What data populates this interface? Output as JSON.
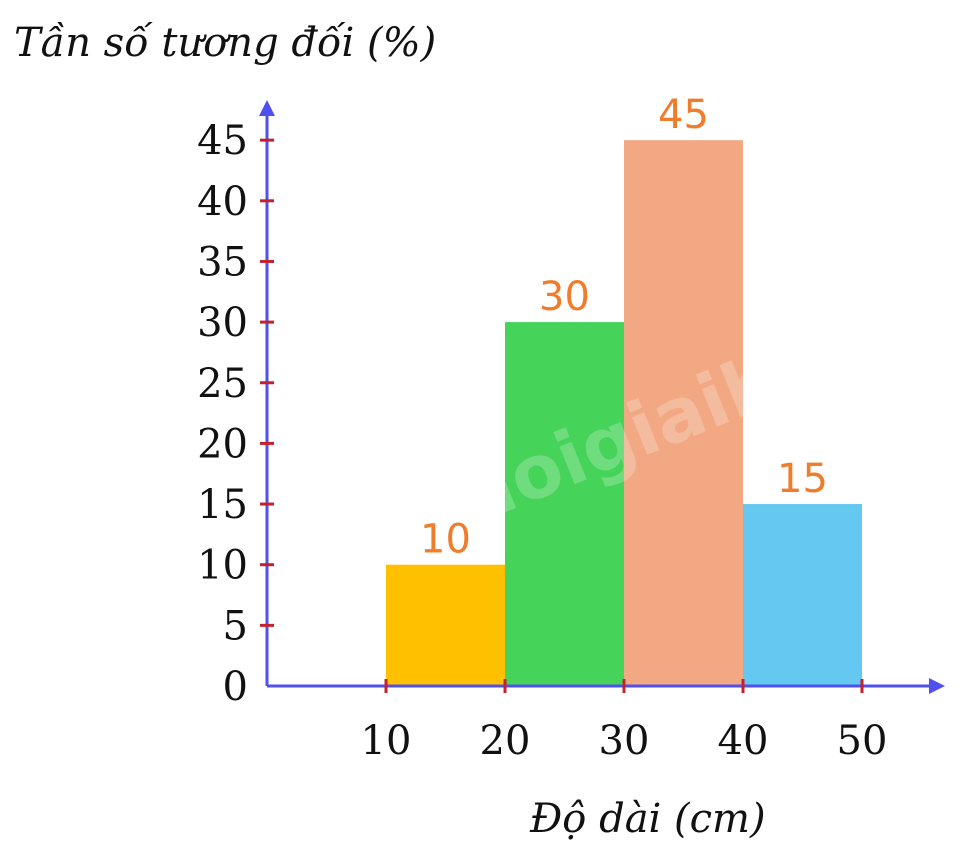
{
  "chart_data": {
    "type": "bar",
    "ylabel": "Tần số tương đối (%)",
    "xlabel": "Độ dài (cm)",
    "x_ticks": [
      10,
      20,
      30,
      40,
      50
    ],
    "y_ticks": [
      0,
      5,
      10,
      15,
      20,
      25,
      30,
      35,
      40,
      45
    ],
    "bins": [
      [
        10,
        20
      ],
      [
        20,
        30
      ],
      [
        30,
        40
      ],
      [
        40,
        50
      ]
    ],
    "values": [
      10,
      30,
      45,
      15
    ],
    "data_labels": [
      "10",
      "30",
      "45",
      "15"
    ],
    "colors": [
      "#ffc000",
      "#46d35a",
      "#f2a983",
      "#64c8f0"
    ],
    "label_color": "#f07d2b",
    "axis_color": "#5050f0",
    "tick_color": "#c8202a",
    "xlim": [
      0,
      50
    ],
    "ylim": [
      0,
      45
    ],
    "grid": false,
    "watermark": "loigiaihay.com"
  }
}
